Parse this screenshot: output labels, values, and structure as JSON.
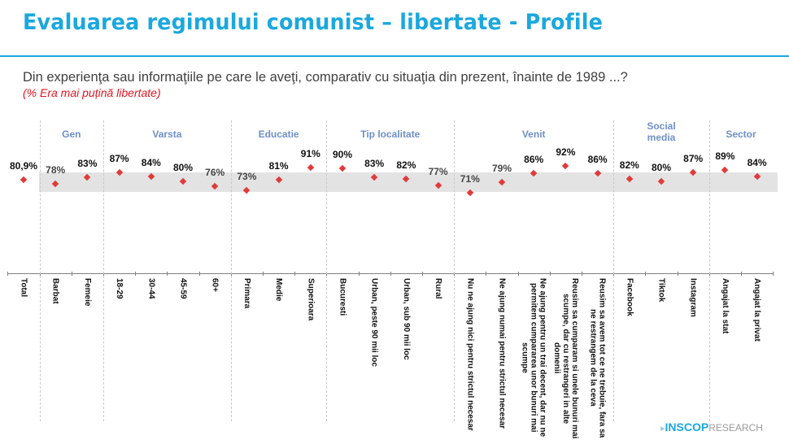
{
  "header": {
    "title": "Evaluarea regimului comunist – libertate - Profile",
    "question": "Din experienţa sau informaţiile pe care le aveţi, comparativ cu situaţia din prezent, înainte de 1989 ...?",
    "subtitle": "(% Era mai puțină libertate)"
  },
  "logo": {
    "mark": "▸",
    "brand": "INSCOP",
    "suffix": "RESEARCH"
  },
  "colors": {
    "title": "#1aa8de",
    "group_label": "#6e8fc9",
    "marker": "#e23a3a",
    "band": "#e3e3e3",
    "subtitle": "#e0141e"
  },
  "chart_data": {
    "type": "scatter",
    "title": "Evaluarea regimului comunist – libertate - Profile",
    "ylabel": "% Era mai putina libertate",
    "xlabel": "",
    "grid": false,
    "legend": null,
    "groups": [
      {
        "name": "",
        "categories": [
          "Total"
        ]
      },
      {
        "name": "Gen",
        "categories": [
          "Barbat",
          "Femeie"
        ]
      },
      {
        "name": "Varsta",
        "categories": [
          "18-29",
          "30-44",
          "45-59",
          "60+"
        ]
      },
      {
        "name": "Educatie",
        "categories": [
          "Primara",
          "Medie",
          "Superioara"
        ]
      },
      {
        "name": "Tip localitate",
        "categories": [
          "Bucuresti",
          "Urban, peste 90 mii loc",
          "Urban, sub 90 mii loc",
          "Rural"
        ]
      },
      {
        "name": "Venit",
        "categories": [
          "Nu ne ajung nici pentru strictul necesar",
          "Ne ajung numai pentru strictul necesar",
          "Ne ajung pentru un trai decent, dar nu ne permitem cumpararea unor bunuri mai scumpe",
          "Reusim sa cumparam si unele bunuri mai scumpe, dar cu restrangeri in alte domenii",
          "Reusim sa avem tot ce ne trebuie, fara sa ne restrangem de la ceva"
        ]
      },
      {
        "name": "Social media",
        "categories": [
          "Facebook",
          "Tiktok",
          "Instagram"
        ]
      },
      {
        "name": "Sector",
        "categories": [
          "Angajat la stat",
          "Angajat la privat"
        ]
      }
    ],
    "categories": [
      "Total",
      "Barbat",
      "Femeie",
      "18-29",
      "30-44",
      "45-59",
      "60+",
      "Primara",
      "Medie",
      "Superioara",
      "Bucuresti",
      "Urban, peste 90 mii loc",
      "Urban, sub 90 mii loc",
      "Rural",
      "Nu ne ajung nici pentru strictul necesar",
      "Ne ajung numai pentru strictul necesar",
      "Ne ajung pentru un trai decent, dar nu ne permitem cumpararea unor bunuri mai scumpe",
      "Reusim sa cumparam si unele bunuri mai scumpe, dar cu restrangeri in alte domenii",
      "Reusim sa avem tot ce ne trebuie, fara sa ne restrangem de la ceva",
      "Facebook",
      "Tiktok",
      "Instagram",
      "Angajat la stat",
      "Angajat la privat"
    ],
    "values": [
      80.9,
      78,
      83,
      87,
      84,
      80,
      76,
      73,
      81,
      91,
      90,
      83,
      82,
      77,
      71,
      79,
      86,
      92,
      86,
      82,
      80,
      87,
      89,
      84
    ],
    "labels": [
      "80,9%",
      "78%",
      "83%",
      "87%",
      "84%",
      "80%",
      "76%",
      "73%",
      "81%",
      "91%",
      "90%",
      "83%",
      "82%",
      "77%",
      "71%",
      "79%",
      "86%",
      "92%",
      "86%",
      "82%",
      "80%",
      "87%",
      "89%",
      "84%"
    ],
    "band": {
      "description": "shaded reference range around total",
      "approx_range": [
        76,
        86
      ]
    }
  },
  "display": {
    "group_labels": [
      "Gen",
      "Varsta",
      "Educatie",
      "Tip localitate",
      "Venit",
      "Social\nmedia",
      "Sector"
    ],
    "cat_labels": [
      "Total",
      "Barbat",
      "Femeie",
      "18-29",
      "30-44",
      "45-59",
      "60+",
      "Primara",
      "Medie",
      "Superioara",
      "Bucuresti",
      "Urban, peste 90 mii loc",
      "Urban, sub 90 mii loc",
      "Rural",
      "Nu ne ajung nici pentru strictul necesar",
      "Ne ajung numai pentru strictul necesar",
      "Ne ajung pentru un trai decent, dar nu ne\npermitem cumpararea unor bunuri mai\nscumpe",
      "Reusim sa cumparam si unele bunuri mai\nscumpe, dar cu restrangeri in alte\ndomenii",
      "Reusim sa avem tot ce ne trebuie, fara sa\nne restrangem de la ceva",
      "Facebook",
      "Tiktok",
      "Instagram",
      "Angajat la stat",
      "Angajat la privat"
    ]
  }
}
